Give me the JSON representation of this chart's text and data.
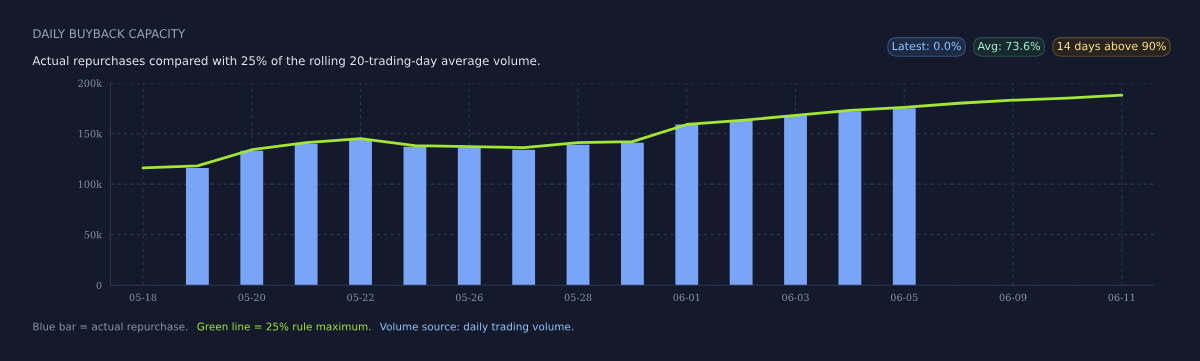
{
  "chart_data": {
    "type": "bar",
    "title": "DAILY BUYBACK CAPACITY",
    "subtitle": "Actual repurchases compared with 25% of the rolling 20-trading-day average volume.",
    "categories": [
      "05-18",
      null,
      "05-20",
      null,
      "05-22",
      null,
      "05-26",
      null,
      "05-28",
      null,
      "06-01",
      null,
      "06-03",
      null,
      "06-05",
      null,
      "06-09",
      null,
      "06-11"
    ],
    "series": [
      {
        "color": "#7aa5f7",
        "values": [
          null,
          116000,
          133000,
          140000,
          144000,
          137000,
          136000,
          134000,
          139000,
          141000,
          159000,
          163000,
          168000,
          172000,
          175000,
          null,
          null,
          null,
          null
        ]
      },
      {
        "type": "line",
        "color": "#a3e635",
        "values": [
          116000,
          118000,
          134000,
          141000,
          145000,
          138000,
          137000,
          136000,
          141000,
          142000,
          159000,
          163000,
          168000,
          173000,
          176000,
          180000,
          183000,
          185000,
          188000
        ]
      }
    ],
    "ylim": [
      0,
      200000
    ],
    "yticks": [
      0,
      {
        "value": 50000,
        "label": "50k"
      },
      {
        "value": 100000,
        "label": "100k"
      },
      {
        "value": 150000,
        "label": "150k"
      },
      {
        "value": 200000,
        "label": "200k"
      }
    ],
    "grid": true,
    "annotations": [
      "Latest: 0.0%",
      "Avg: 73.6%",
      "14 days above 90%",
      "Blue bar = actual repurchase.",
      "Green line = 25% rule maximum.",
      "Volume source: daily trading volume."
    ]
  }
}
